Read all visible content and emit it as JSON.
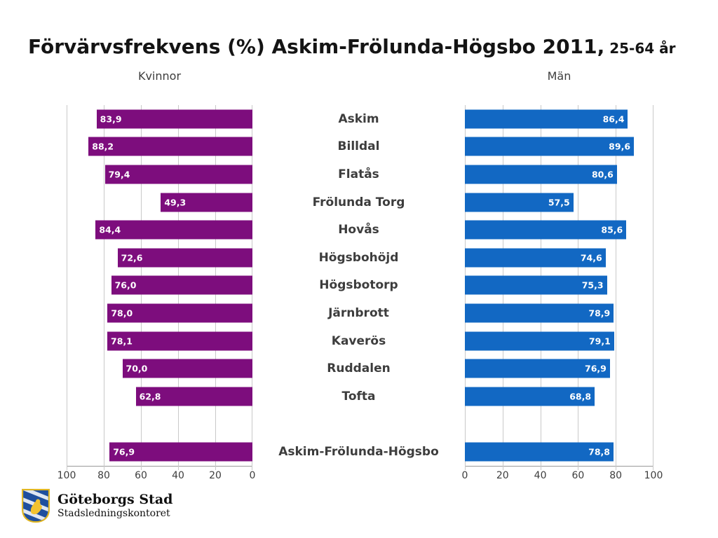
{
  "title": {
    "main": "Förvärvsfrekvens (%) Askim-Frölunda-Högsbo 2011,",
    "suffix": " 25-64 år"
  },
  "headers": {
    "left": "Kvinnor",
    "right": "Män"
  },
  "colors": {
    "women_bar": "#7d0d7d",
    "men_bar": "#1268c3",
    "gridline": "#c9c9c9"
  },
  "chart_data": {
    "type": "bar",
    "layout": "tornado-horizontal",
    "title": "Förvärvsfrekvens (%) Askim-Frölunda-Högsbo 2011, 25-64 år",
    "categories": [
      "Askim",
      "Billdal",
      "Flatås",
      "Frölunda Torg",
      "Hovås",
      "Högsbohöjd",
      "Högsbotorp",
      "Järnbrott",
      "Kaverös",
      "Ruddalen",
      "Tofta",
      "Askim-Frölunda-Högsbo"
    ],
    "gap_before_index": 11,
    "series": [
      {
        "name": "Kvinnor",
        "side": "left",
        "axis_reversed": true,
        "values": [
          83.9,
          88.2,
          79.4,
          49.3,
          84.4,
          72.6,
          76.0,
          78.0,
          78.1,
          70.0,
          62.8,
          76.9
        ],
        "labels": [
          "83,9",
          "88,2",
          "79,4",
          "49,3",
          "84,4",
          "72,6",
          "76,0",
          "78,0",
          "78,1",
          "70,0",
          "62,8",
          "76,9"
        ]
      },
      {
        "name": "Män",
        "side": "right",
        "axis_reversed": false,
        "values": [
          86.4,
          89.6,
          80.6,
          57.5,
          85.6,
          74.6,
          75.3,
          78.9,
          79.1,
          76.9,
          68.8,
          78.8
        ],
        "labels": [
          "86,4",
          "89,6",
          "80,6",
          "57,5",
          "85,6",
          "74,6",
          "75,3",
          "78,9",
          "79,1",
          "76,9",
          "68,8",
          "78,8"
        ]
      }
    ],
    "xlim": [
      0,
      100
    ],
    "ticks_left": [
      "100",
      "80",
      "60",
      "40",
      "20",
      "0"
    ],
    "ticks_right": [
      "0",
      "20",
      "40",
      "60",
      "80",
      "100"
    ],
    "grid": true,
    "legend": "none"
  },
  "footer": {
    "org": "Göteborgs Stad",
    "dept": "Stadsledningskontoret"
  }
}
